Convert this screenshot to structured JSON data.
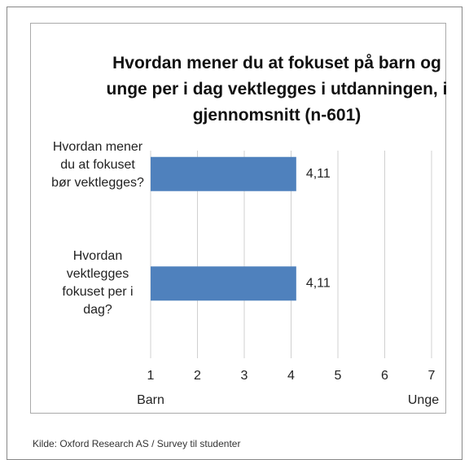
{
  "chart_data": {
    "type": "barh",
    "title": "Hvordan mener du at fokuset på barn og unge per i dag vektlegges i utdanningen, i gjennomsnitt (n-601)",
    "categories": [
      "Hvordan mener du at fokuset bør vektlegges?",
      "Hvordan vektlegges fokuset per i dag?"
    ],
    "values": [
      4.11,
      4.11
    ],
    "value_labels": [
      "4,11",
      "4,11"
    ],
    "color": "#4f81bd",
    "xlim": [
      1,
      7
    ],
    "xticks": [
      1,
      2,
      3,
      4,
      5,
      6,
      7
    ],
    "axis_end_labels": [
      "Barn",
      "Unge"
    ],
    "grid": true,
    "source": "Kilde: Oxford Research AS / Survey til studenter"
  }
}
